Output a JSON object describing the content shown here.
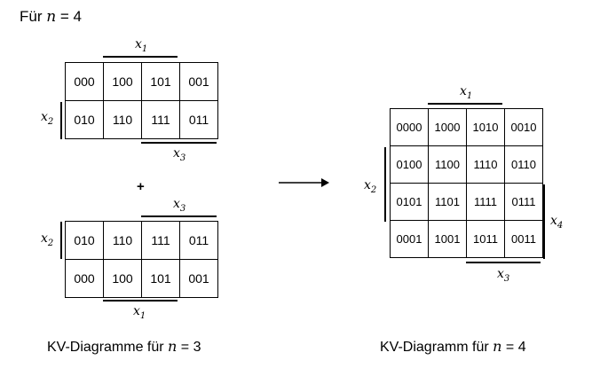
{
  "heading": {
    "prefix": "Für ",
    "var": "n",
    "rest": " = 4"
  },
  "map3_top": {
    "rows": [
      [
        "000",
        "100",
        "101",
        "001"
      ],
      [
        "010",
        "110",
        "111",
        "011"
      ]
    ],
    "top_label": {
      "main": "x",
      "sub": "1"
    },
    "left_label": {
      "main": "x",
      "sub": "2"
    },
    "bottom_label": {
      "main": "x",
      "sub": "3"
    }
  },
  "plus_sign": "+",
  "map3_bottom": {
    "rows": [
      [
        "010",
        "110",
        "111",
        "011"
      ],
      [
        "000",
        "100",
        "101",
        "001"
      ]
    ],
    "top_label": {
      "main": "x",
      "sub": "3"
    },
    "left_label": {
      "main": "x",
      "sub": "2"
    },
    "bottom_label": {
      "main": "x",
      "sub": "1"
    }
  },
  "map4": {
    "rows": [
      [
        "0000",
        "1000",
        "1010",
        "0010"
      ],
      [
        "0100",
        "1100",
        "1110",
        "0110"
      ],
      [
        "0101",
        "1101",
        "1111",
        "0111"
      ],
      [
        "0001",
        "1001",
        "1011",
        "0011"
      ]
    ],
    "top_label": {
      "main": "x",
      "sub": "1"
    },
    "left_label": {
      "main": "x",
      "sub": "2"
    },
    "right_label": {
      "main": "x",
      "sub": "4"
    },
    "bottom_label": {
      "main": "x",
      "sub": "3"
    }
  },
  "caption_left": {
    "prefix": "KV-Diagramme für ",
    "var": "n",
    "rest": " = 3"
  },
  "caption_right": {
    "prefix": "KV-Diagramm für ",
    "var": "n",
    "rest": " = 4"
  }
}
